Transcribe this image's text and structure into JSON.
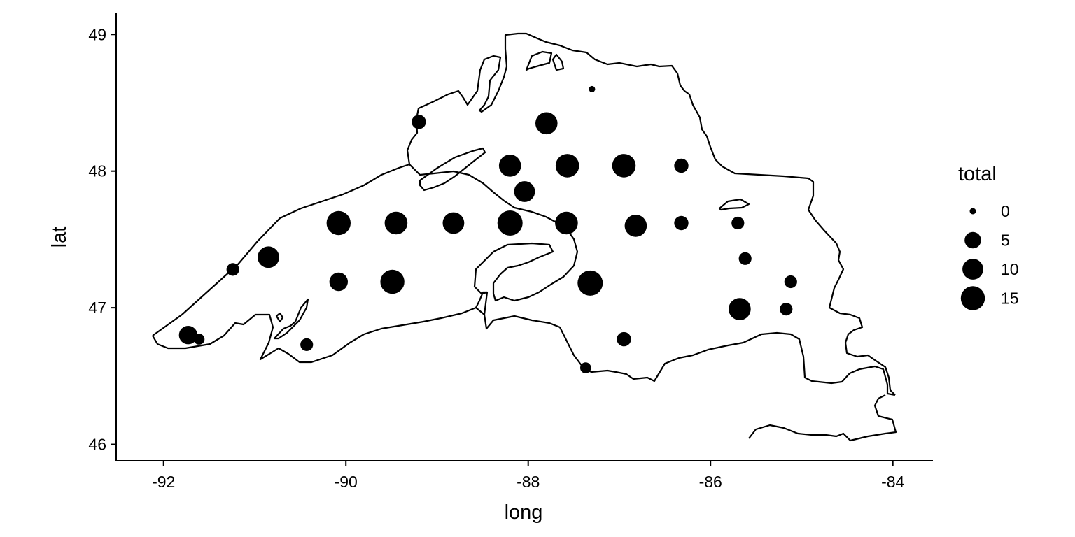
{
  "chart_data": {
    "type": "scatter",
    "xlabel": "long",
    "ylabel": "lat",
    "xlim": [
      -92.52,
      -83.56
    ],
    "ylim": [
      45.88,
      49.16
    ],
    "x_ticks": [
      {
        "value": -92,
        "label": "-92"
      },
      {
        "value": -90,
        "label": "-90"
      },
      {
        "value": -88,
        "label": "-88"
      },
      {
        "value": -86,
        "label": "-86"
      },
      {
        "value": -84,
        "label": "-84"
      }
    ],
    "y_ticks": [
      {
        "value": 46,
        "label": "46"
      },
      {
        "value": 47,
        "label": "47"
      },
      {
        "value": 48,
        "label": "48"
      },
      {
        "value": 49,
        "label": "49"
      }
    ],
    "size_variable": "total",
    "size_range": [
      0,
      17
    ],
    "legend": {
      "title": "total",
      "position": "right",
      "entries": [
        {
          "value": 0,
          "label": "0"
        },
        {
          "value": 5,
          "label": "5"
        },
        {
          "value": 10,
          "label": "10"
        },
        {
          "value": 15,
          "label": "15"
        }
      ]
    },
    "grid": false,
    "points": [
      {
        "long": -87.3,
        "lat": 48.6,
        "total": 0
      },
      {
        "long": -89.2,
        "lat": 48.36,
        "total": 3
      },
      {
        "long": -87.8,
        "lat": 48.35,
        "total": 12
      },
      {
        "long": -88.2,
        "lat": 48.04,
        "total": 12
      },
      {
        "long": -87.57,
        "lat": 48.04,
        "total": 14
      },
      {
        "long": -86.95,
        "lat": 48.04,
        "total": 14
      },
      {
        "long": -86.32,
        "lat": 48.04,
        "total": 3
      },
      {
        "long": -88.04,
        "lat": 47.85,
        "total": 10
      },
      {
        "long": -90.08,
        "lat": 47.62,
        "total": 15
      },
      {
        "long": -89.45,
        "lat": 47.62,
        "total": 13
      },
      {
        "long": -88.82,
        "lat": 47.62,
        "total": 11
      },
      {
        "long": -88.2,
        "lat": 47.62,
        "total": 17
      },
      {
        "long": -87.58,
        "lat": 47.62,
        "total": 13
      },
      {
        "long": -86.82,
        "lat": 47.6,
        "total": 12
      },
      {
        "long": -86.32,
        "lat": 47.62,
        "total": 3
      },
      {
        "long": -85.7,
        "lat": 47.62,
        "total": 2
      },
      {
        "long": -90.85,
        "lat": 47.37,
        "total": 11
      },
      {
        "long": -91.24,
        "lat": 47.28,
        "total": 2
      },
      {
        "long": -85.62,
        "lat": 47.36,
        "total": 2
      },
      {
        "long": -90.08,
        "lat": 47.19,
        "total": 7
      },
      {
        "long": -89.49,
        "lat": 47.19,
        "total": 15
      },
      {
        "long": -87.32,
        "lat": 47.18,
        "total": 17
      },
      {
        "long": -85.12,
        "lat": 47.19,
        "total": 2
      },
      {
        "long": -85.68,
        "lat": 46.99,
        "total": 12
      },
      {
        "long": -85.17,
        "lat": 46.99,
        "total": 2
      },
      {
        "long": -91.73,
        "lat": 46.8,
        "total": 7
      },
      {
        "long": -91.61,
        "lat": 46.77,
        "total": 1
      },
      {
        "long": -90.43,
        "lat": 46.73,
        "total": 2
      },
      {
        "long": -86.95,
        "lat": 46.77,
        "total": 3
      },
      {
        "long": -87.37,
        "lat": 46.56,
        "total": 1
      }
    ]
  }
}
